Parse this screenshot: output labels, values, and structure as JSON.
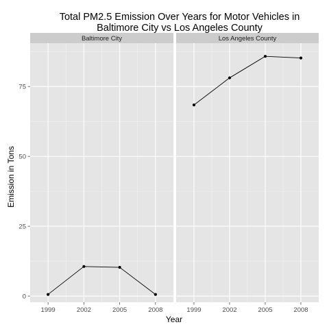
{
  "chart_data": {
    "type": "line",
    "title_lines": [
      "Total PM2.5 Emission Over Years for Motor Vehicles in",
      "Baltimore City vs Los Angeles County"
    ],
    "xlabel": "Year",
    "ylabel": "Emission in Tons",
    "x_ticks": [
      1999,
      2002,
      2005,
      2008
    ],
    "y_ticks": [
      0,
      25,
      50,
      75
    ],
    "xlim": [
      1997.5,
      2009.5
    ],
    "ylim": [
      -2.2,
      90.5
    ],
    "grid": true,
    "panels": [
      {
        "label": "Baltimore City",
        "x": [
          1999,
          2002,
          2005,
          2008
        ],
        "y": [
          0.6,
          10.6,
          10.3,
          0.6
        ]
      },
      {
        "label": "Los Angeles County",
        "x": [
          1999,
          2002,
          2005,
          2008
        ],
        "y": [
          68.4,
          78.1,
          85.8,
          85.2
        ]
      }
    ]
  }
}
